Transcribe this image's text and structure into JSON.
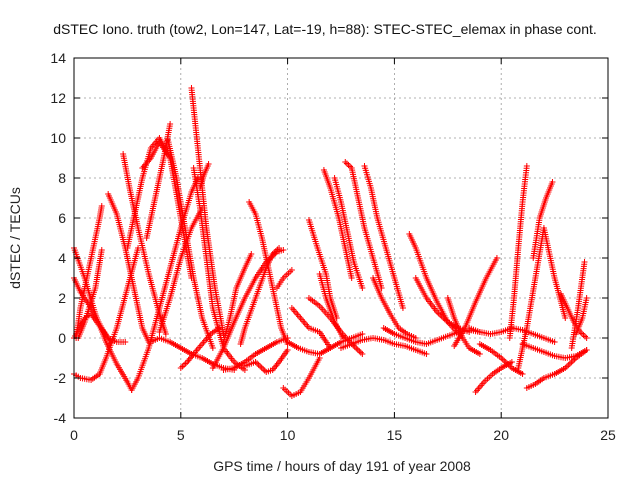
{
  "chart_data": {
    "type": "scatter",
    "title": "dSTEC Iono. truth (tow2, Lon=147, Lat=-19, h=88): STEC-STEC_elemax in phase cont.",
    "xlabel": "GPS time / hours of day 191 of year 2008",
    "ylabel": "dSTEC  / TECUs",
    "xlim": [
      0,
      25
    ],
    "ylim": [
      -4,
      14
    ],
    "xticks": [
      0,
      5,
      10,
      15,
      20,
      25
    ],
    "yticks": [
      -4,
      -2,
      0,
      2,
      4,
      6,
      8,
      10,
      12,
      14
    ],
    "grid": true,
    "marker": "+",
    "color": "#ff0000",
    "series": [
      {
        "x": [
          0.0,
          0.5,
          1.0,
          1.5,
          2.0,
          2.5,
          2.7
        ],
        "y": [
          4.5,
          3.0,
          1.2,
          -0.2,
          -1.3,
          -2.2,
          -2.6
        ]
      },
      {
        "x": [
          2.7,
          3.0,
          3.5,
          4.0,
          4.5,
          5.0,
          5.5,
          5.8
        ],
        "y": [
          -2.6,
          -2.0,
          -0.5,
          1.5,
          3.5,
          5.5,
          7.3,
          8.0
        ]
      },
      {
        "x": [
          0.0,
          0.3,
          0.8,
          1.2
        ],
        "y": [
          -1.8,
          -2.0,
          -2.1,
          -1.8
        ]
      },
      {
        "x": [
          1.2,
          1.5,
          2.0,
          2.5,
          3.0
        ],
        "y": [
          -1.8,
          -1.0,
          0.5,
          2.5,
          4.5
        ]
      },
      {
        "x": [
          0.0,
          0.2,
          0.5,
          0.8,
          1.2,
          1.6,
          2.0,
          2.4
        ],
        "y": [
          0.0,
          0.4,
          1.0,
          1.2,
          0.6,
          0.0,
          -0.2,
          -0.2
        ]
      },
      {
        "x": [
          0.0,
          0.3,
          0.8,
          1.3,
          1.7
        ],
        "y": [
          3.0,
          2.3,
          1.5,
          0.5,
          -0.2
        ]
      },
      {
        "x": [
          0.1,
          0.3,
          0.6,
          0.9,
          1.2,
          1.3
        ],
        "y": [
          0.0,
          1.5,
          3.0,
          4.5,
          6.0,
          6.6
        ]
      },
      {
        "x": [
          0.2,
          0.5,
          1.0,
          1.3
        ],
        "y": [
          0.0,
          0.8,
          2.5,
          4.4
        ]
      },
      {
        "x": [
          1.6,
          2.0,
          2.4,
          2.8,
          3.2,
          3.5
        ],
        "y": [
          7.2,
          6.2,
          4.5,
          2.5,
          0.5,
          -0.2
        ]
      },
      {
        "x": [
          2.3,
          2.6,
          3.0,
          3.5,
          4.0,
          4.3
        ],
        "y": [
          9.2,
          7.5,
          5.5,
          3.2,
          1.2,
          0.2
        ]
      },
      {
        "x": [
          2.5,
          2.8,
          3.2,
          3.6,
          4.0,
          4.5
        ],
        "y": [
          4.5,
          6.0,
          8.0,
          9.5,
          10.0,
          9.0
        ]
      },
      {
        "x": [
          3.2,
          3.6,
          4.0,
          4.5,
          5.0,
          5.5
        ],
        "y": [
          8.5,
          9.0,
          9.8,
          9.0,
          6.0,
          3.0
        ]
      },
      {
        "x": [
          3.4,
          3.8,
          4.2,
          4.5
        ],
        "y": [
          5.0,
          7.0,
          9.0,
          10.7
        ]
      },
      {
        "x": [
          4.4,
          4.8,
          5.2,
          5.6,
          6.0,
          6.5
        ],
        "y": [
          9.9,
          8.0,
          5.5,
          3.0,
          1.0,
          -0.5
        ]
      },
      {
        "x": [
          5.5,
          5.7,
          5.9,
          6.2,
          6.6,
          7.0
        ],
        "y": [
          12.5,
          10.5,
          8.5,
          5.5,
          2.5,
          0.2
        ]
      },
      {
        "x": [
          5.6,
          5.9,
          6.2,
          6.5,
          7.0,
          7.5,
          8.0
        ],
        "y": [
          8.5,
          6.5,
          4.0,
          1.5,
          -0.5,
          -1.2,
          -1.6
        ]
      },
      {
        "x": [
          5.9,
          6.1,
          6.3
        ],
        "y": [
          7.5,
          8.2,
          8.7
        ]
      },
      {
        "x": [
          3.6,
          4.0,
          4.5,
          5.0,
          5.5,
          6.0,
          6.5,
          7.0,
          7.5
        ],
        "y": [
          -0.2,
          0.0,
          -0.2,
          -0.5,
          -0.8,
          -1.0,
          -1.3,
          -1.5,
          -1.6
        ]
      },
      {
        "x": [
          4.0,
          4.5,
          5.0,
          5.5,
          6.0
        ],
        "y": [
          0.3,
          2.0,
          4.0,
          5.5,
          6.5
        ]
      },
      {
        "x": [
          5.0,
          5.3,
          5.6,
          6.0,
          6.4,
          6.8
        ],
        "y": [
          -1.5,
          -1.2,
          -0.8,
          -0.3,
          0.2,
          0.5
        ]
      },
      {
        "x": [
          6.5,
          7.0,
          7.5,
          8.0,
          8.5,
          9.0,
          9.5,
          9.8
        ],
        "y": [
          -1.5,
          -0.5,
          0.8,
          2.0,
          3.0,
          3.8,
          4.3,
          4.4
        ]
      },
      {
        "x": [
          7.0,
          7.3,
          7.6,
          8.0,
          8.3
        ],
        "y": [
          -0.2,
          1.0,
          2.5,
          3.5,
          4.2
        ]
      },
      {
        "x": [
          7.0,
          7.5,
          8.0,
          8.5,
          9.0,
          9.5,
          10.0
        ],
        "y": [
          -1.6,
          -1.5,
          -1.2,
          -0.8,
          -0.5,
          -0.2,
          0.0
        ]
      },
      {
        "x": [
          8.2,
          8.5,
          8.8,
          9.1,
          9.4,
          9.7,
          10.0
        ],
        "y": [
          6.8,
          6.2,
          5.0,
          3.5,
          2.0,
          0.5,
          -0.3
        ]
      },
      {
        "x": [
          7.8,
          8.0,
          8.5,
          9.0,
          9.3,
          9.6
        ],
        "y": [
          -0.3,
          0.5,
          2.0,
          3.5,
          4.2,
          4.5
        ]
      },
      {
        "x": [
          8.0,
          8.5,
          9.0,
          9.3,
          9.6,
          10.0
        ],
        "y": [
          -1.4,
          -1.2,
          -1.7,
          -1.6,
          -1.2,
          -0.6
        ]
      },
      {
        "x": [
          9.5,
          9.8,
          10.2
        ],
        "y": [
          2.5,
          3.0,
          3.4
        ]
      },
      {
        "x": [
          9.8,
          10.2,
          10.6,
          11.0,
          11.5
        ],
        "y": [
          -2.5,
          -2.9,
          -2.7,
          -2.0,
          -1.0
        ]
      },
      {
        "x": [
          10.0,
          10.5,
          11.0,
          11.5,
          12.0,
          12.5,
          13.0,
          13.5
        ],
        "y": [
          -0.2,
          -0.5,
          -0.7,
          -0.8,
          -0.5,
          -0.2,
          0.0,
          0.2
        ]
      },
      {
        "x": [
          10.2,
          10.6,
          11.0,
          11.5,
          12.0
        ],
        "y": [
          1.5,
          1.0,
          0.5,
          0.3,
          -0.5
        ]
      },
      {
        "x": [
          11.0,
          11.5,
          12.0,
          12.5,
          13.0,
          13.5
        ],
        "y": [
          2.0,
          1.6,
          1.0,
          0.3,
          -0.3,
          -0.8
        ]
      },
      {
        "x": [
          11.0,
          11.4,
          11.8,
          12.0,
          12.3
        ],
        "y": [
          5.9,
          4.5,
          3.2,
          2.0,
          1.0
        ]
      },
      {
        "x": [
          11.5,
          11.8,
          12.2,
          12.6
        ],
        "y": [
          3.2,
          2.0,
          0.8,
          0.0
        ]
      },
      {
        "x": [
          11.7,
          12.0,
          12.4,
          12.7,
          13.0
        ],
        "y": [
          8.4,
          7.5,
          6.0,
          4.5,
          3.0
        ]
      },
      {
        "x": [
          12.2,
          12.5,
          12.8,
          13.1,
          13.5
        ],
        "y": [
          8.0,
          6.8,
          5.3,
          3.8,
          2.5
        ]
      },
      {
        "x": [
          12.7,
          13.0,
          13.3,
          13.6,
          14.0,
          14.4
        ],
        "y": [
          8.8,
          8.5,
          7.0,
          5.5,
          4.0,
          2.5
        ]
      },
      {
        "x": [
          13.6,
          13.9,
          14.2,
          14.6,
          15.0,
          15.4
        ],
        "y": [
          8.6,
          7.5,
          6.0,
          4.5,
          3.0,
          1.5
        ]
      },
      {
        "x": [
          14.0,
          14.4,
          14.8,
          15.2,
          15.6,
          16.0
        ],
        "y": [
          3.0,
          2.0,
          1.2,
          0.5,
          0.2,
          0.0
        ]
      },
      {
        "x": [
          12.5,
          13.0,
          13.5,
          14.0,
          14.5,
          15.0,
          15.5,
          16.0,
          16.5
        ],
        "y": [
          -0.5,
          -0.3,
          -0.1,
          0.0,
          -0.1,
          -0.3,
          -0.4,
          -0.6,
          -0.8
        ]
      },
      {
        "x": [
          14.5,
          15.0,
          15.5,
          16.0,
          16.5,
          17.0,
          17.5,
          18.0,
          18.5,
          19.0
        ],
        "y": [
          0.5,
          0.2,
          0.0,
          -0.2,
          -0.3,
          -0.1,
          0.1,
          0.3,
          0.4,
          0.3
        ]
      },
      {
        "x": [
          15.7,
          16.0,
          16.5,
          17.0,
          17.5,
          18.0
        ],
        "y": [
          5.2,
          4.5,
          3.0,
          1.8,
          0.8,
          0.2
        ]
      },
      {
        "x": [
          16.0,
          16.5,
          17.0,
          17.5,
          18.0,
          18.5
        ],
        "y": [
          3.0,
          2.0,
          1.3,
          0.8,
          0.5,
          0.3
        ]
      },
      {
        "x": [
          17.5,
          17.8,
          18.2,
          18.5,
          19.0
        ],
        "y": [
          2.0,
          1.0,
          0.0,
          -0.5,
          -0.8
        ]
      },
      {
        "x": [
          18.5,
          19.0,
          19.5,
          20.0,
          20.5,
          21.0,
          21.5,
          22.0,
          22.5
        ],
        "y": [
          0.5,
          0.3,
          0.2,
          0.3,
          0.5,
          0.4,
          0.2,
          0.0,
          -0.2
        ]
      },
      {
        "x": [
          18.8,
          19.2,
          19.6,
          20.0,
          20.5
        ],
        "y": [
          -2.7,
          -2.2,
          -1.8,
          -1.5,
          -1.2
        ]
      },
      {
        "x": [
          19.0,
          19.5,
          20.0,
          20.5,
          21.0
        ],
        "y": [
          -0.3,
          -0.6,
          -1.0,
          -1.5,
          -1.8
        ]
      },
      {
        "x": [
          17.8,
          18.3,
          18.8,
          19.3,
          19.8
        ],
        "y": [
          -0.4,
          0.5,
          1.8,
          3.0,
          4.0
        ]
      },
      {
        "x": [
          20.4,
          20.6,
          20.8,
          21.0,
          21.2
        ],
        "y": [
          0.0,
          2.0,
          4.5,
          6.8,
          8.6
        ]
      },
      {
        "x": [
          20.8,
          21.2,
          21.6,
          22.0,
          22.5,
          23.0
        ],
        "y": [
          -1.5,
          0.5,
          3.0,
          5.5,
          3.0,
          1.0
        ]
      },
      {
        "x": [
          21.2,
          21.6,
          22.0,
          22.5,
          23.0,
          23.5,
          24.0
        ],
        "y": [
          -2.5,
          -2.3,
          -2.0,
          -1.8,
          -1.5,
          -1.0,
          -0.6
        ]
      },
      {
        "x": [
          21.0,
          21.5,
          22.0,
          22.5,
          23.0,
          23.5,
          24.0
        ],
        "y": [
          -0.3,
          -0.5,
          -0.7,
          -0.9,
          -1.0,
          -0.9,
          -0.6
        ]
      },
      {
        "x": [
          21.5,
          21.8,
          22.1,
          22.4
        ],
        "y": [
          4.0,
          6.0,
          7.0,
          7.8
        ]
      },
      {
        "x": [
          22.8,
          23.1,
          23.4,
          23.7,
          24.0
        ],
        "y": [
          2.2,
          1.5,
          0.8,
          0.3,
          0.0
        ]
      },
      {
        "x": [
          23.3,
          23.6,
          23.9
        ],
        "y": [
          -0.5,
          1.5,
          3.8
        ]
      },
      {
        "x": [
          23.5,
          23.8,
          24.0
        ],
        "y": [
          0.2,
          1.0,
          2.0
        ]
      }
    ]
  }
}
